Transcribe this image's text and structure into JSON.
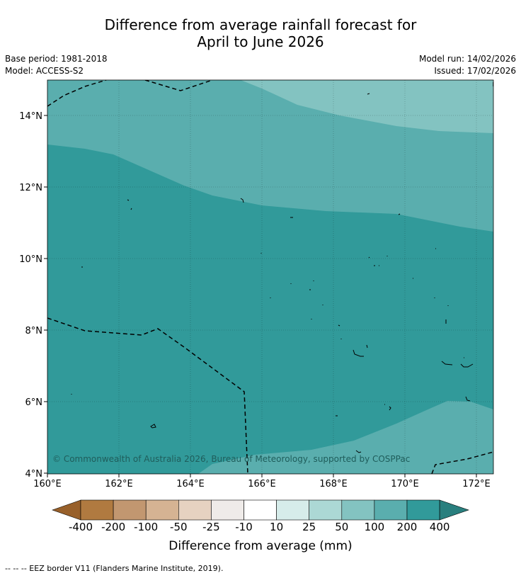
{
  "title_line1": "Difference from average rainfall forecast for",
  "title_line2": "April to June 2026",
  "base_period": "Base period: 1981-2018",
  "model": "Model: ACCESS-S2",
  "model_run": "Model run: 14/02/2026",
  "issued": "Issued: 17/02/2026",
  "copyright": "© Commonwealth of Australia 2026, Bureau of Meteorology, supported by COSPPac",
  "footnote": "--  --  -- EEZ border V11 (Flanders Marine Institute, 2019).",
  "colorbar": {
    "title": "Difference from average (mm)",
    "labels": [
      "-400",
      "-200",
      "-100",
      "-50",
      "-25",
      "-10",
      "10",
      "25",
      "50",
      "100",
      "200",
      "400"
    ],
    "colors": [
      "#98602a",
      "#b07a40",
      "#c29770",
      "#d5b393",
      "#e6d2c1",
      "#efebe9",
      "#ffffff",
      "#d6ecea",
      "#acd8d5",
      "#83c3c1",
      "#5aaeae",
      "#319a9a",
      "#297f7e"
    ]
  },
  "map": {
    "x_ticks": [
      "160°E",
      "162°E",
      "164°E",
      "166°E",
      "168°E",
      "170°E",
      "172°E"
    ],
    "y_ticks": [
      "4°N",
      "6°N",
      "8°N",
      "10°N",
      "12°N",
      "14°N"
    ],
    "lon_range": [
      160,
      172.5
    ],
    "lat_range": [
      4,
      15
    ]
  }
}
